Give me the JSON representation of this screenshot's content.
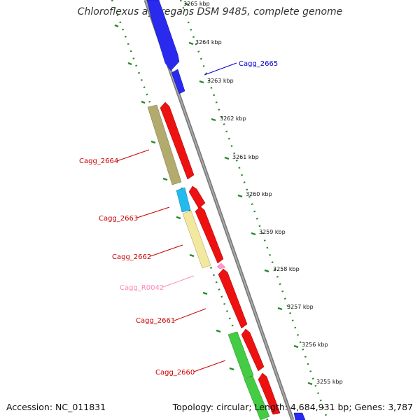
{
  "title": "Chloroflexus aggregans DSM 9485, complete genome",
  "footer": {
    "accession": "Accession: NC_011831",
    "summary": "Topology: circular; Length: 4,684,931 bp; Genes: 3,787"
  },
  "colors": {
    "forward_cds": "#2a2aee",
    "reverse_cds": "#ee1111",
    "cog_olive": "#b3aa6e",
    "cog_cyan": "#22bbee",
    "cog_yellow": "#f2e8a0",
    "cog_green": "#44cc44",
    "rna": "#ff99cc",
    "backbone": "#888888",
    "ruler": "#2a8a2a"
  },
  "ticks": [
    {
      "label": "3265 kbp"
    },
    {
      "label": "3264 kbp"
    },
    {
      "label": "3263 kbp"
    },
    {
      "label": "3262 kbp"
    },
    {
      "label": "3261 kbp"
    },
    {
      "label": "3260 kbp"
    },
    {
      "label": "3259 kbp"
    },
    {
      "label": "3258 kbp"
    },
    {
      "label": "3257 kbp"
    },
    {
      "label": "3256 kbp"
    },
    {
      "label": "3255 kbp"
    }
  ],
  "gene_labels": [
    {
      "name": "Cagg_2665",
      "color": "#0000cc"
    },
    {
      "name": "Cagg_2664",
      "color": "#cc0000"
    },
    {
      "name": "Cagg_2663",
      "color": "#cc0000"
    },
    {
      "name": "Cagg_2662",
      "color": "#cc0000"
    },
    {
      "name": "Cagg_R0042",
      "color": "#ff88bb"
    },
    {
      "name": "Cagg_2661",
      "color": "#cc0000"
    },
    {
      "name": "Cagg_2660",
      "color": "#cc0000"
    }
  ]
}
